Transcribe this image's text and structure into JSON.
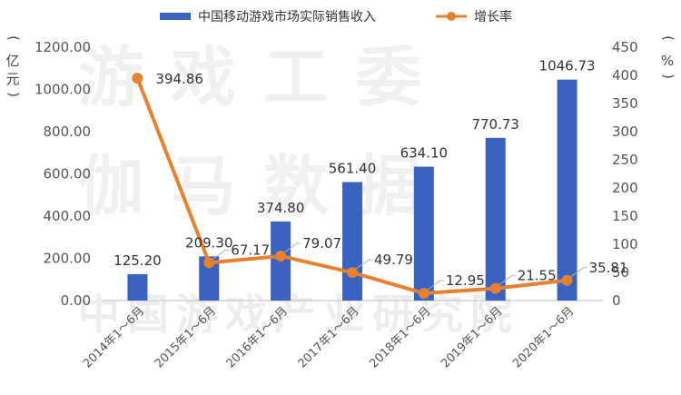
{
  "chart_data": {
    "type": "bar+line",
    "categories": [
      "2014年1～6月",
      "2015年1～6月",
      "2016年1～6月",
      "2017年1～6月",
      "2018年1～6月",
      "2019年1～6月",
      "2020年1～6月"
    ],
    "series": [
      {
        "name": "中国移动游戏市场实际销售收入",
        "type": "bar",
        "axis": "left",
        "color": "#3a62c0",
        "values": [
          125.2,
          209.3,
          374.8,
          561.4,
          634.1,
          770.73,
          1046.73
        ],
        "labels": [
          "125.20",
          "209.30",
          "374.80",
          "561.40",
          "634.10",
          "770.73",
          "1046.73"
        ]
      },
      {
        "name": "增长率",
        "type": "line",
        "axis": "right",
        "color": "#e5812f",
        "values": [
          394.86,
          67.17,
          79.07,
          49.79,
          12.95,
          21.55,
          35.81
        ],
        "labels": [
          "394.86",
          "67.17",
          "79.07",
          "49.79",
          "12.95",
          "21.55",
          "35.81"
        ]
      }
    ],
    "y_left": {
      "unit": "亿元",
      "range": [
        0,
        1200
      ],
      "ticks": [
        "0.00",
        "200.00",
        "400.00",
        "600.00",
        "800.00",
        "1000.00",
        "1200.00"
      ]
    },
    "y_right": {
      "unit": "%",
      "range": [
        0,
        450
      ],
      "ticks": [
        "0",
        "50",
        "100",
        "150",
        "200",
        "250",
        "300",
        "350",
        "400",
        "450"
      ]
    },
    "grid": false,
    "legend": "top-center"
  },
  "watermark": {
    "line1": "游戏工委",
    "line2": "伽马数据",
    "line3": "中国游戏产业研究院"
  }
}
